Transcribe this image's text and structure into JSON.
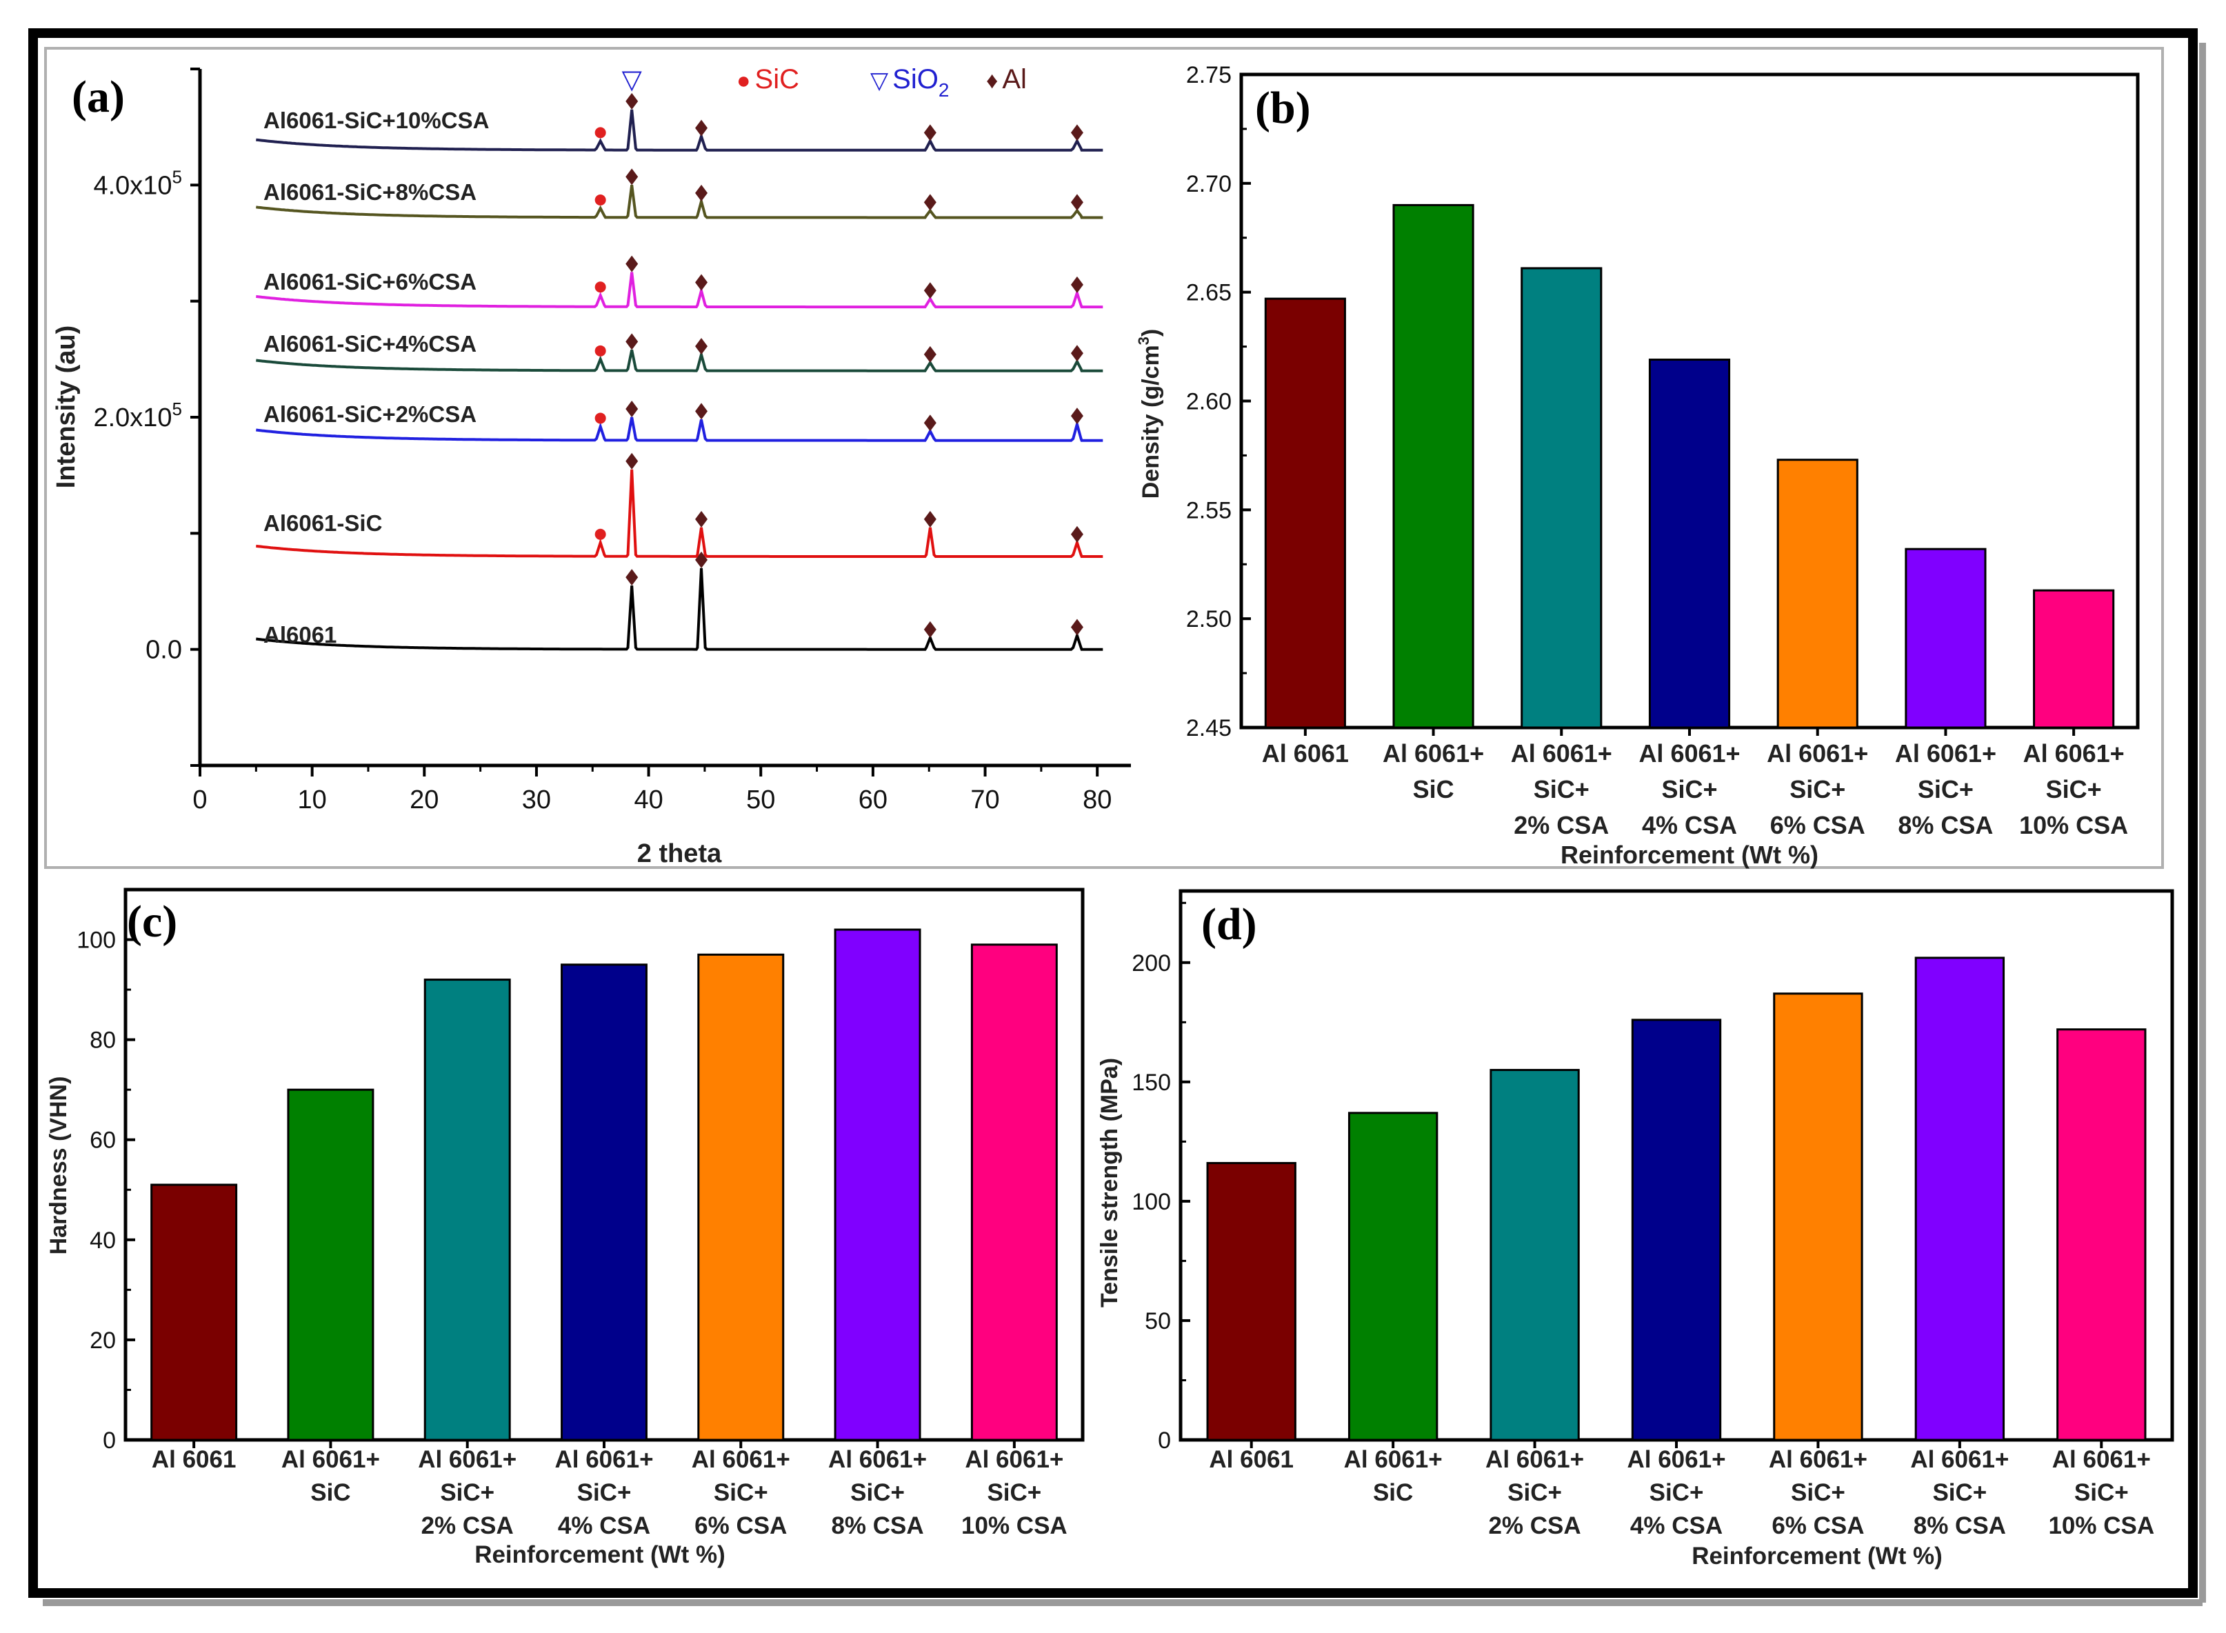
{
  "colors": {
    "al6061": "#7a0000",
    "sic": "#008000",
    "csa2": "#008080",
    "csa4": "#00008b",
    "csa6": "#ff8000",
    "csa8": "#8000ff",
    "csa10": "#ff007f",
    "marker_sic": "#e02020",
    "marker_sio2": "#2020d0",
    "marker_al": "#5a1a1a"
  },
  "chart_data": [
    {
      "panel": "(a)",
      "type": "line",
      "xlabel": "2 theta",
      "ylabel": "Intensity (au)",
      "xlim": [
        0,
        83
      ],
      "ylim": [
        -100000,
        500000
      ],
      "xticks": [
        "0",
        "10",
        "20",
        "30",
        "40",
        "50",
        "60",
        "70",
        "80"
      ],
      "yticks": [
        {
          "value": 0,
          "label": "0.0"
        },
        {
          "value": 200000,
          "label": "2.0x10",
          "sup": "5"
        },
        {
          "value": 400000,
          "label": "4.0x10",
          "sup": "5"
        }
      ],
      "legend": [
        {
          "symbol": "●",
          "label": "SiC",
          "color_key": "marker_sic"
        },
        {
          "symbol": "▽",
          "label": "SiO",
          "sub": "2",
          "color_key": "marker_sio2"
        },
        {
          "symbol": "♦",
          "label": "Al",
          "color_key": "marker_al"
        }
      ],
      "sio2_marker": {
        "symbol": "▽",
        "x": 38.5
      },
      "series": [
        {
          "name": "Al6061",
          "color": "#000000",
          "baseline": 0,
          "peaks": [
            [
              38.5,
              55000
            ],
            [
              44.7,
              70000
            ],
            [
              65.1,
              10000
            ],
            [
              78.2,
              12000
            ]
          ],
          "markers": [
            {
              "type": "Al",
              "x": 38.5
            },
            {
              "type": "Al",
              "x": 44.7
            },
            {
              "type": "Al",
              "x": 65.1
            },
            {
              "type": "Al",
              "x": 78.2
            }
          ]
        },
        {
          "name": "Al6061-SiC",
          "color": "#e01010",
          "baseline": 80000,
          "peaks": [
            [
              35.7,
              12000
            ],
            [
              38.5,
              75000
            ],
            [
              44.7,
              25000
            ],
            [
              65.1,
              25000
            ],
            [
              78.2,
              12000
            ]
          ],
          "markers": [
            {
              "type": "SiC",
              "x": 35.7
            },
            {
              "type": "Al",
              "x": 38.5
            },
            {
              "type": "Al",
              "x": 44.7
            },
            {
              "type": "Al",
              "x": 65.1
            },
            {
              "type": "Al",
              "x": 78.2
            }
          ]
        },
        {
          "name": "Al6061-SiC+2%CSA",
          "color": "#2020e0",
          "baseline": 180000,
          "peaks": [
            [
              35.7,
              12000
            ],
            [
              38.5,
              20000
            ],
            [
              44.7,
              18000
            ],
            [
              65.1,
              8000
            ],
            [
              78.2,
              14000
            ]
          ],
          "markers": [
            {
              "type": "SiC",
              "x": 35.7
            },
            {
              "type": "Al",
              "x": 38.5
            },
            {
              "type": "Al",
              "x": 44.7
            },
            {
              "type": "Al",
              "x": 65.1
            },
            {
              "type": "Al",
              "x": 78.2
            }
          ]
        },
        {
          "name": "Al6061-SiC+4%CSA",
          "color": "#1a4a3a",
          "baseline": 240000,
          "peaks": [
            [
              35.7,
              10000
            ],
            [
              38.5,
              18000
            ],
            [
              44.7,
              14000
            ],
            [
              65.1,
              7000
            ],
            [
              78.2,
              8000
            ]
          ],
          "markers": [
            {
              "type": "SiC",
              "x": 35.7
            },
            {
              "type": "Al",
              "x": 38.5
            },
            {
              "type": "Al",
              "x": 44.7
            },
            {
              "type": "Al",
              "x": 65.1
            },
            {
              "type": "Al",
              "x": 78.2
            }
          ]
        },
        {
          "name": "Al6061-SiC+6%CSA",
          "color": "#e020e0",
          "baseline": 295000,
          "peaks": [
            [
              35.7,
              10000
            ],
            [
              38.5,
              30000
            ],
            [
              44.7,
              14000
            ],
            [
              65.1,
              7000
            ],
            [
              78.2,
              12000
            ]
          ],
          "markers": [
            {
              "type": "SiC",
              "x": 35.7
            },
            {
              "type": "Al",
              "x": 38.5
            },
            {
              "type": "Al",
              "x": 44.7
            },
            {
              "type": "Al",
              "x": 65.1
            },
            {
              "type": "Al",
              "x": 78.2
            }
          ]
        },
        {
          "name": "Al6061-SiC+8%CSA",
          "color": "#555520",
          "baseline": 372000,
          "peaks": [
            [
              35.7,
              8000
            ],
            [
              38.5,
              28000
            ],
            [
              44.7,
              14000
            ],
            [
              65.1,
              6000
            ],
            [
              78.2,
              6000
            ]
          ],
          "markers": [
            {
              "type": "SiC",
              "x": 35.7
            },
            {
              "type": "Al",
              "x": 38.5
            },
            {
              "type": "Al",
              "x": 44.7
            },
            {
              "type": "Al",
              "x": 65.1
            },
            {
              "type": "Al",
              "x": 78.2
            }
          ]
        },
        {
          "name": "Al6061-SiC+10%CSA",
          "color": "#202050",
          "baseline": 430000,
          "peaks": [
            [
              35.7,
              8000
            ],
            [
              38.5,
              35000
            ],
            [
              44.7,
              12000
            ],
            [
              65.1,
              8000
            ],
            [
              78.2,
              8000
            ]
          ],
          "markers": [
            {
              "type": "SiC",
              "x": 35.7
            },
            {
              "type": "Al",
              "x": 38.5
            },
            {
              "type": "Al",
              "x": 44.7
            },
            {
              "type": "Al",
              "x": 65.1
            },
            {
              "type": "Al",
              "x": 78.2
            }
          ]
        }
      ]
    },
    {
      "panel": "(b)",
      "type": "bar",
      "xlabel": "Reinforcement (Wt %)",
      "ylabel": "Density  (g/cm",
      "ylabel_sup": "3",
      "ylabel_end": ")",
      "ylim": [
        2.45,
        2.75
      ],
      "yticks": [
        "2.45",
        "2.50",
        "2.55",
        "2.60",
        "2.65",
        "2.70",
        "2.75"
      ],
      "categories": [
        [
          "Al 6061"
        ],
        [
          "Al 6061+",
          "SiC"
        ],
        [
          "Al 6061+",
          "SiC+",
          "2% CSA"
        ],
        [
          "Al 6061+",
          "SiC+",
          "4% CSA"
        ],
        [
          "Al 6061+",
          "SiC+",
          "6% CSA"
        ],
        [
          "Al 6061+",
          "SiC+",
          "8% CSA"
        ],
        [
          "Al 6061+",
          "SiC+",
          "10% CSA"
        ]
      ],
      "values": [
        2.647,
        2.69,
        2.661,
        2.619,
        2.573,
        2.532,
        2.513
      ]
    },
    {
      "panel": "(c)",
      "type": "bar",
      "xlabel": "Reinforcement (Wt %)",
      "ylabel": "Hardness (VHN)",
      "ylim": [
        0,
        110
      ],
      "yticks": [
        "0",
        "20",
        "40",
        "60",
        "80",
        "100"
      ],
      "categories": [
        [
          "Al 6061"
        ],
        [
          "Al 6061+",
          "SiC"
        ],
        [
          "Al 6061+",
          "SiC+",
          "2% CSA"
        ],
        [
          "Al 6061+",
          "SiC+",
          "4% CSA"
        ],
        [
          "Al 6061+",
          "SiC+",
          "6% CSA"
        ],
        [
          "Al 6061+",
          "SiC+",
          "8% CSA"
        ],
        [
          "Al 6061+",
          "SiC+",
          "10% CSA"
        ]
      ],
      "values": [
        51,
        70,
        92,
        95,
        97,
        102,
        99
      ]
    },
    {
      "panel": "(d)",
      "type": "bar",
      "xlabel": "Reinforcement (Wt %)",
      "ylabel": "Tensile strength (MPa)",
      "ylim": [
        0,
        230
      ],
      "yticks": [
        "0",
        "50",
        "100",
        "150",
        "200"
      ],
      "categories": [
        [
          "Al 6061"
        ],
        [
          "Al 6061+",
          "SiC"
        ],
        [
          "Al 6061+",
          "SiC+",
          "2% CSA"
        ],
        [
          "Al 6061+",
          "SiC+",
          "4% CSA"
        ],
        [
          "Al 6061+",
          "SiC+",
          "6% CSA"
        ],
        [
          "Al 6061+",
          "SiC+",
          "8% CSA"
        ],
        [
          "Al 6061+",
          "SiC+",
          "10% CSA"
        ]
      ],
      "values": [
        116,
        137,
        155,
        176,
        187,
        202,
        172
      ]
    }
  ]
}
